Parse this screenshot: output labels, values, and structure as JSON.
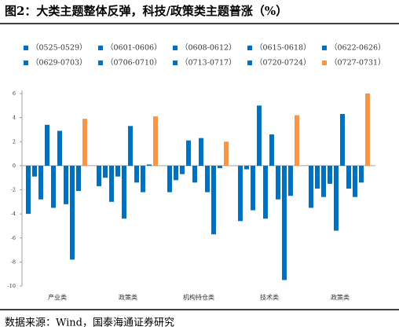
{
  "chart_data": {
    "type": "bar",
    "title": "图2：大类主题整体反弹，科技/政策类主题普涨（%）",
    "source": "数据来源：Wind，国泰海通证券研究",
    "categories": [
      "产业类",
      "政策类",
      "机构持仓类",
      "技术类",
      "政策类"
    ],
    "series": [
      {
        "name": "（0525-0529）",
        "color": "#0070c0",
        "values": [
          -4.0,
          -1.7,
          -2.2,
          -4.6,
          -3.5
        ]
      },
      {
        "name": "（0601-0606）",
        "color": "#0070c0",
        "values": [
          -0.9,
          -1.0,
          -1.2,
          -0.3,
          -1.9
        ]
      },
      {
        "name": "（0608-0612）",
        "color": "#0070c0",
        "values": [
          -2.8,
          -3.0,
          -0.7,
          -3.7,
          -2.6
        ]
      },
      {
        "name": "（0615-0618）",
        "color": "#0070c0",
        "values": [
          3.4,
          -0.9,
          2.1,
          5.0,
          -1.5
        ]
      },
      {
        "name": "（0622-0626）",
        "color": "#0070c0",
        "values": [
          -3.5,
          -4.4,
          -1.4,
          -4.4,
          -5.4
        ]
      },
      {
        "name": "（0629-0703）",
        "color": "#0070c0",
        "values": [
          2.9,
          3.3,
          2.3,
          2.6,
          4.3
        ]
      },
      {
        "name": "（0706-0710）",
        "color": "#0070c0",
        "values": [
          -3.2,
          -1.4,
          -2.2,
          -2.8,
          -1.9
        ]
      },
      {
        "name": "（0713-0717）",
        "color": "#0070c0",
        "values": [
          -7.8,
          -2.2,
          -5.7,
          -9.5,
          -2.6
        ]
      },
      {
        "name": "（0720-0724）",
        "color": "#0070c0",
        "values": [
          -2.1,
          0.1,
          -0.2,
          -2.5,
          -1.4
        ]
      },
      {
        "name": "（0727-0731）",
        "color": "#f79646",
        "values": [
          3.9,
          4.1,
          2.0,
          4.2,
          6.0
        ]
      }
    ],
    "ylim": [
      -10,
      6
    ],
    "yticks": [
      -10,
      -8,
      -6,
      -4,
      -2,
      0,
      2,
      4,
      6
    ],
    "grid": false
  }
}
